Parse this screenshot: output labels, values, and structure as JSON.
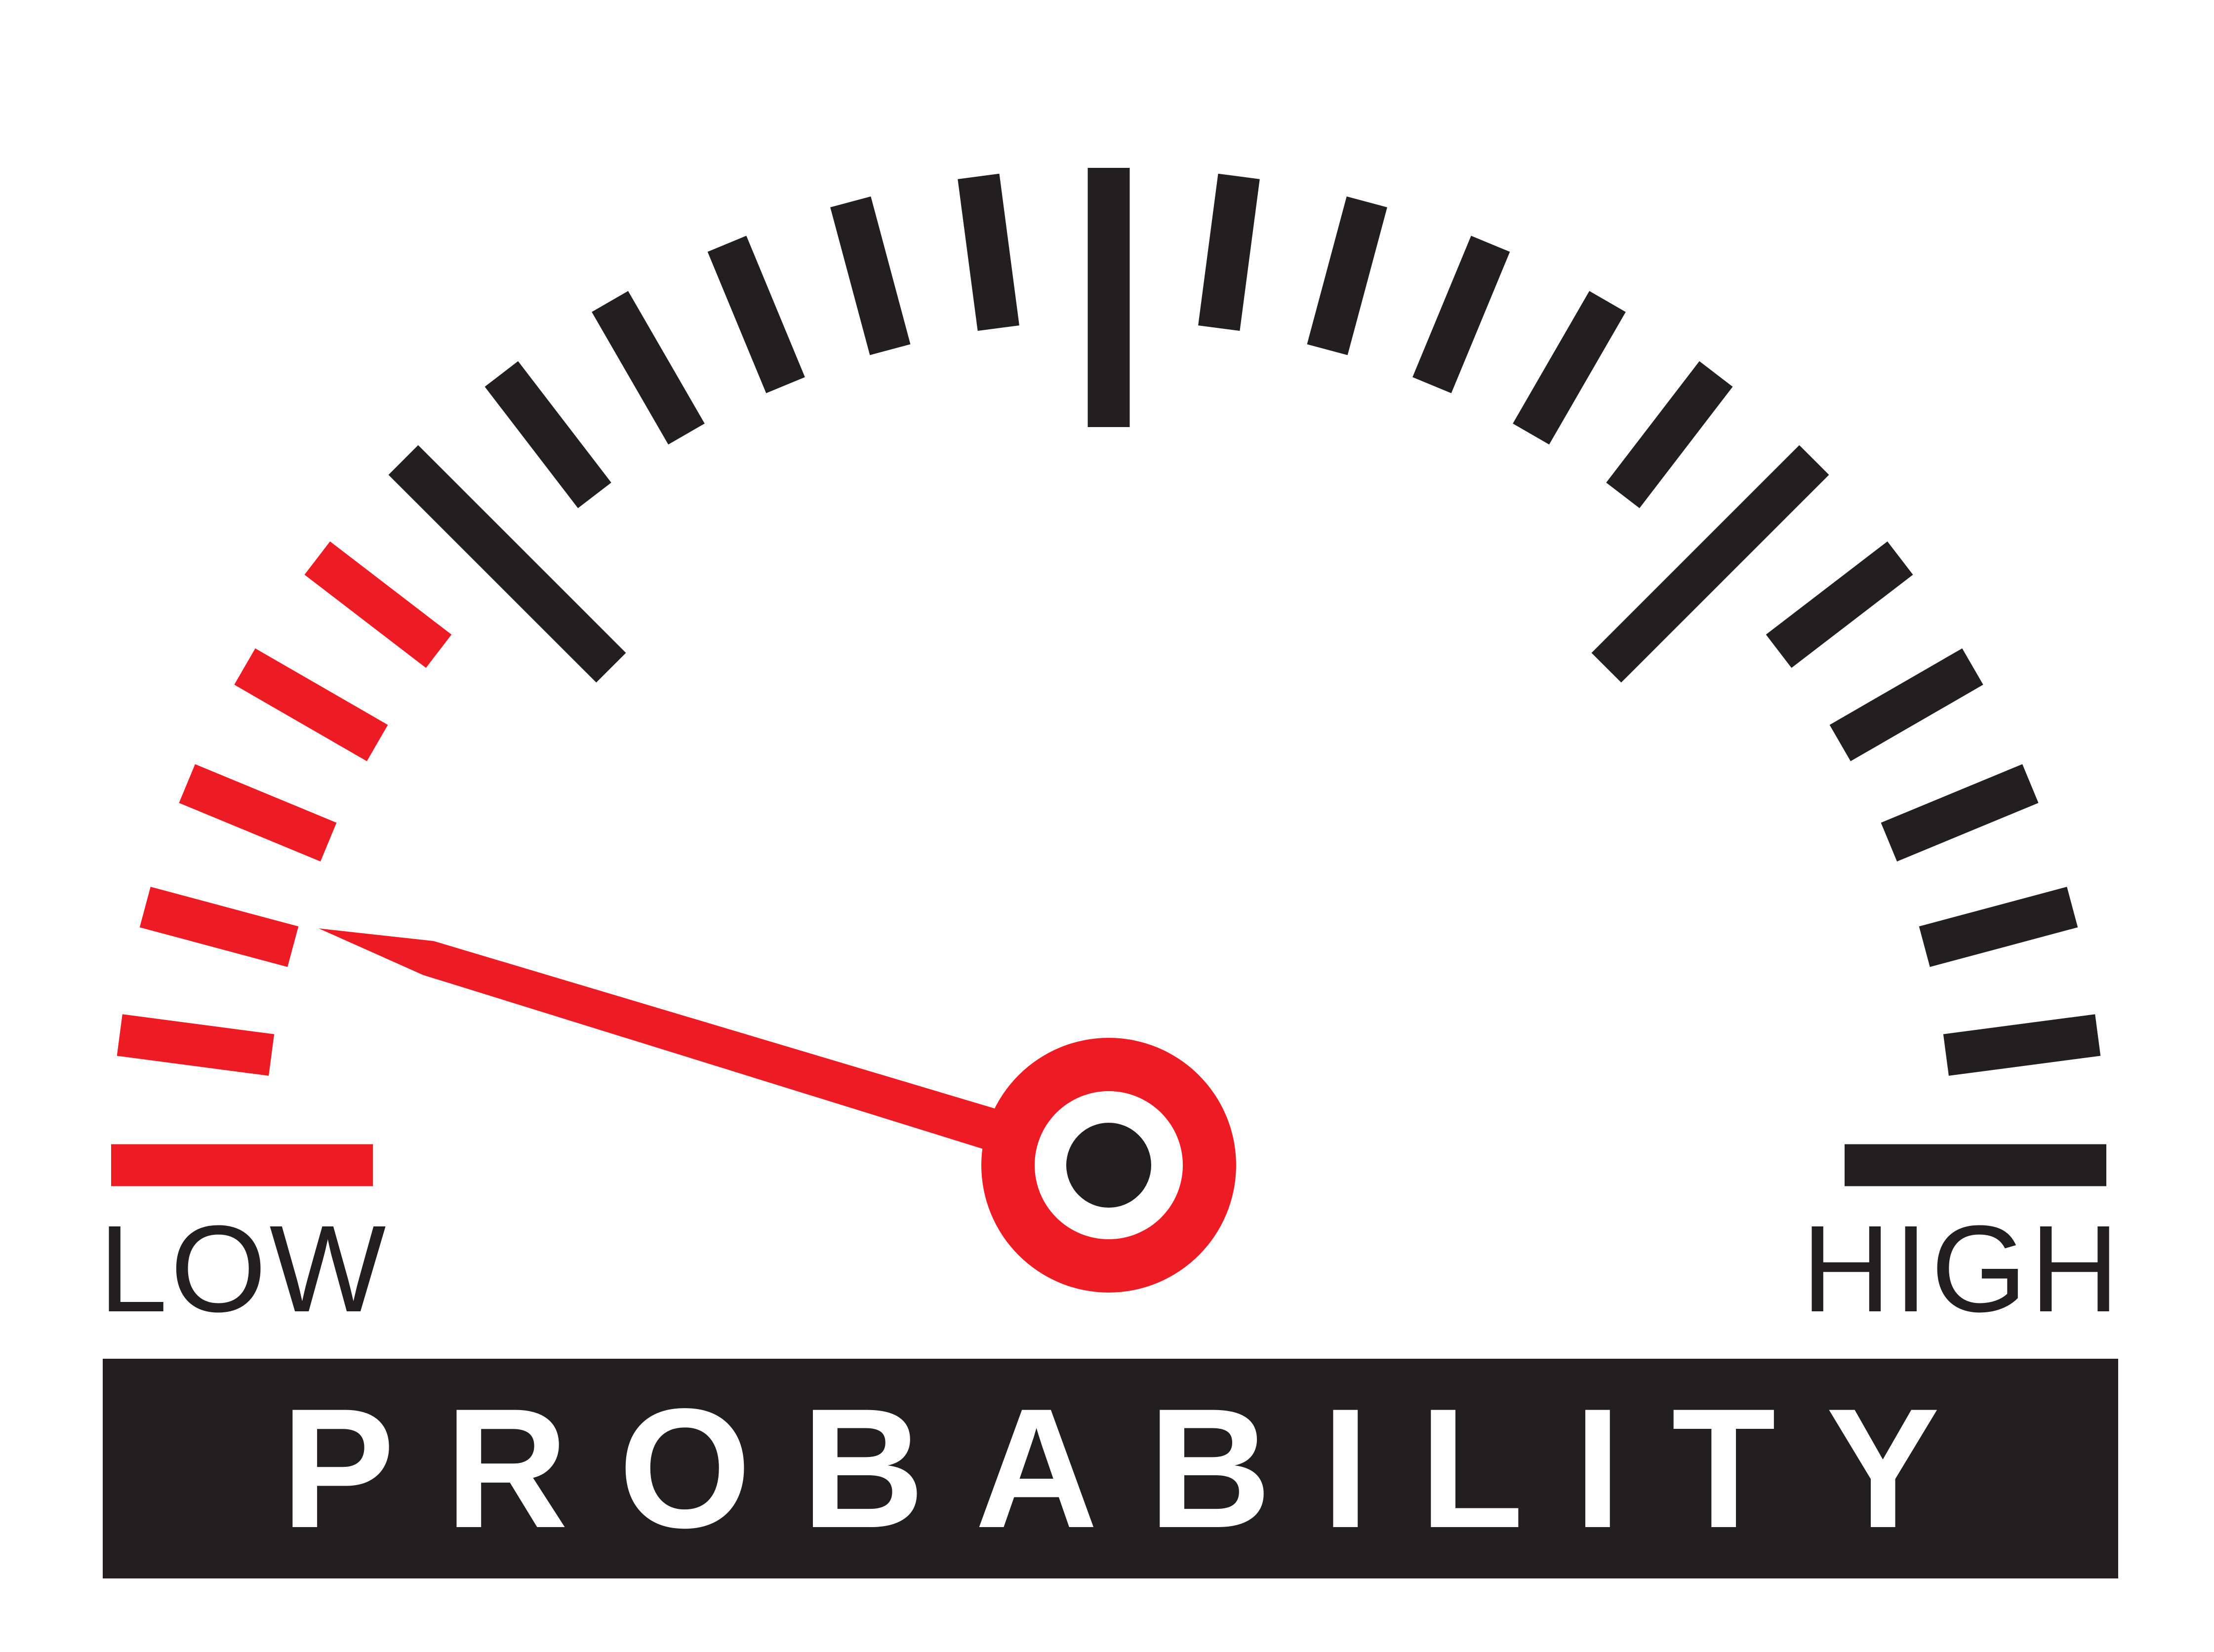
{
  "gauge": {
    "min_label": "LOW",
    "max_label": "HIGH",
    "title": "PROBABILITY",
    "needle_level": 0.095,
    "tick_count": 25,
    "red_tick_count": 6,
    "colors": {
      "red": "#ed1c24",
      "dark": "#231f20",
      "background": "#ffffff"
    }
  }
}
